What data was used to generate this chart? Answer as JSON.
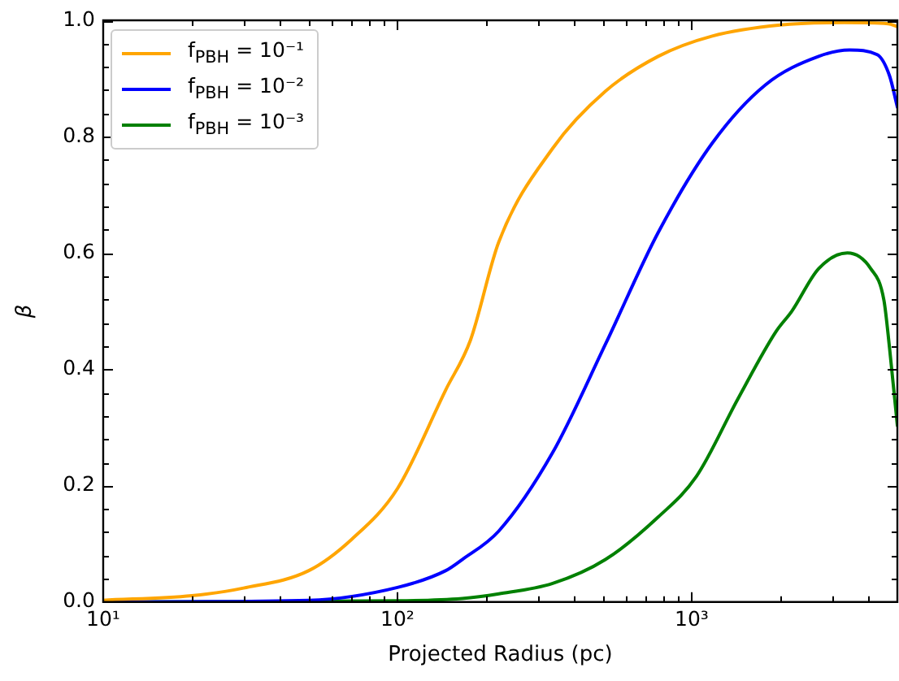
{
  "chart_data": {
    "type": "line",
    "xlabel": "Projected Radius (pc)",
    "ylabel": "β",
    "log": "x",
    "xlim": [
      10,
      5000
    ],
    "ylim": [
      0,
      1
    ],
    "xticks": [
      {
        "value": 10,
        "label": "10¹"
      },
      {
        "value": 20,
        "label": null
      },
      {
        "value": 30,
        "label": null
      },
      {
        "value": 40,
        "label": null
      },
      {
        "value": 50,
        "label": null
      },
      {
        "value": 60,
        "label": null
      },
      {
        "value": 70,
        "label": null
      },
      {
        "value": 80,
        "label": null
      },
      {
        "value": 90,
        "label": null
      },
      {
        "value": 100,
        "label": "10²"
      },
      {
        "value": 200,
        "label": null
      },
      {
        "value": 300,
        "label": null
      },
      {
        "value": 400,
        "label": null
      },
      {
        "value": 500,
        "label": null
      },
      {
        "value": 600,
        "label": null
      },
      {
        "value": 700,
        "label": null
      },
      {
        "value": 800,
        "label": null
      },
      {
        "value": 900,
        "label": null
      },
      {
        "value": 1000,
        "label": "10³"
      },
      {
        "value": 2000,
        "label": null
      },
      {
        "value": 3000,
        "label": null
      },
      {
        "value": 4000,
        "label": null
      }
    ],
    "yticks": [
      {
        "value": 0,
        "label": "0.0"
      },
      {
        "value": 0.04,
        "label": null
      },
      {
        "value": 0.08,
        "label": null
      },
      {
        "value": 0.12,
        "label": null
      },
      {
        "value": 0.16,
        "label": null
      },
      {
        "value": 0.2,
        "label": "0.2"
      },
      {
        "value": 0.24,
        "label": null
      },
      {
        "value": 0.28,
        "label": null
      },
      {
        "value": 0.32,
        "label": null
      },
      {
        "value": 0.36,
        "label": null
      },
      {
        "value": 0.4,
        "label": "0.4"
      },
      {
        "value": 0.44,
        "label": null
      },
      {
        "value": 0.48,
        "label": null
      },
      {
        "value": 0.52,
        "label": null
      },
      {
        "value": 0.56,
        "label": null
      },
      {
        "value": 0.6,
        "label": "0.6"
      },
      {
        "value": 0.64,
        "label": null
      },
      {
        "value": 0.68,
        "label": null
      },
      {
        "value": 0.72,
        "label": null
      },
      {
        "value": 0.76,
        "label": null
      },
      {
        "value": 0.8,
        "label": "0.8"
      },
      {
        "value": 0.84,
        "label": null
      },
      {
        "value": 0.88,
        "label": null
      },
      {
        "value": 0.92,
        "label": null
      },
      {
        "value": 0.96,
        "label": null
      },
      {
        "value": 1,
        "label": "1.0"
      }
    ],
    "legend": "top left",
    "marker": "none",
    "line_style": "solid",
    "grid": false,
    "series": [
      {
        "name": "f$_{PBH}$ = 10⁻¹",
        "color": "#ffa500",
        "x": [
          10,
          20,
          30,
          50,
          70,
          100,
          146,
          177,
          221,
          337,
          509,
          769,
          1175,
          2000,
          3300,
          4650,
          5000
        ],
        "values": [
          0.003,
          0.011,
          0.024,
          0.054,
          0.108,
          0.195,
          0.365,
          0.45,
          0.619,
          0.78,
          0.878,
          0.938,
          0.973,
          0.992,
          0.996,
          0.994,
          0.989
        ]
      },
      {
        "name": "f$_{PBH}$ = 10⁻²",
        "color": "#0000ff",
        "x": [
          10,
          50,
          100,
          146,
          166,
          221,
          337,
          509,
          769,
          1175,
          1780,
          2700,
          3440,
          4270,
          4700,
          5000
        ],
        "values": [
          0,
          0.003,
          0.025,
          0.054,
          0.073,
          0.122,
          0.257,
          0.443,
          0.635,
          0.789,
          0.889,
          0.938,
          0.949,
          0.941,
          0.905,
          0.851
        ]
      },
      {
        "name": "f$_{PBH}$ = 10⁻³",
        "color": "#008000",
        "x": [
          10,
          100,
          166,
          221,
          337,
          509,
          769,
          1038,
          1435,
          1935,
          2190,
          2700,
          3380,
          4060,
          4500,
          4700,
          5000
        ],
        "values": [
          0,
          0.002,
          0.006,
          0.014,
          0.032,
          0.073,
          0.146,
          0.216,
          0.349,
          0.465,
          0.5,
          0.573,
          0.6,
          0.573,
          0.519,
          0.438,
          0.303
        ]
      }
    ]
  }
}
